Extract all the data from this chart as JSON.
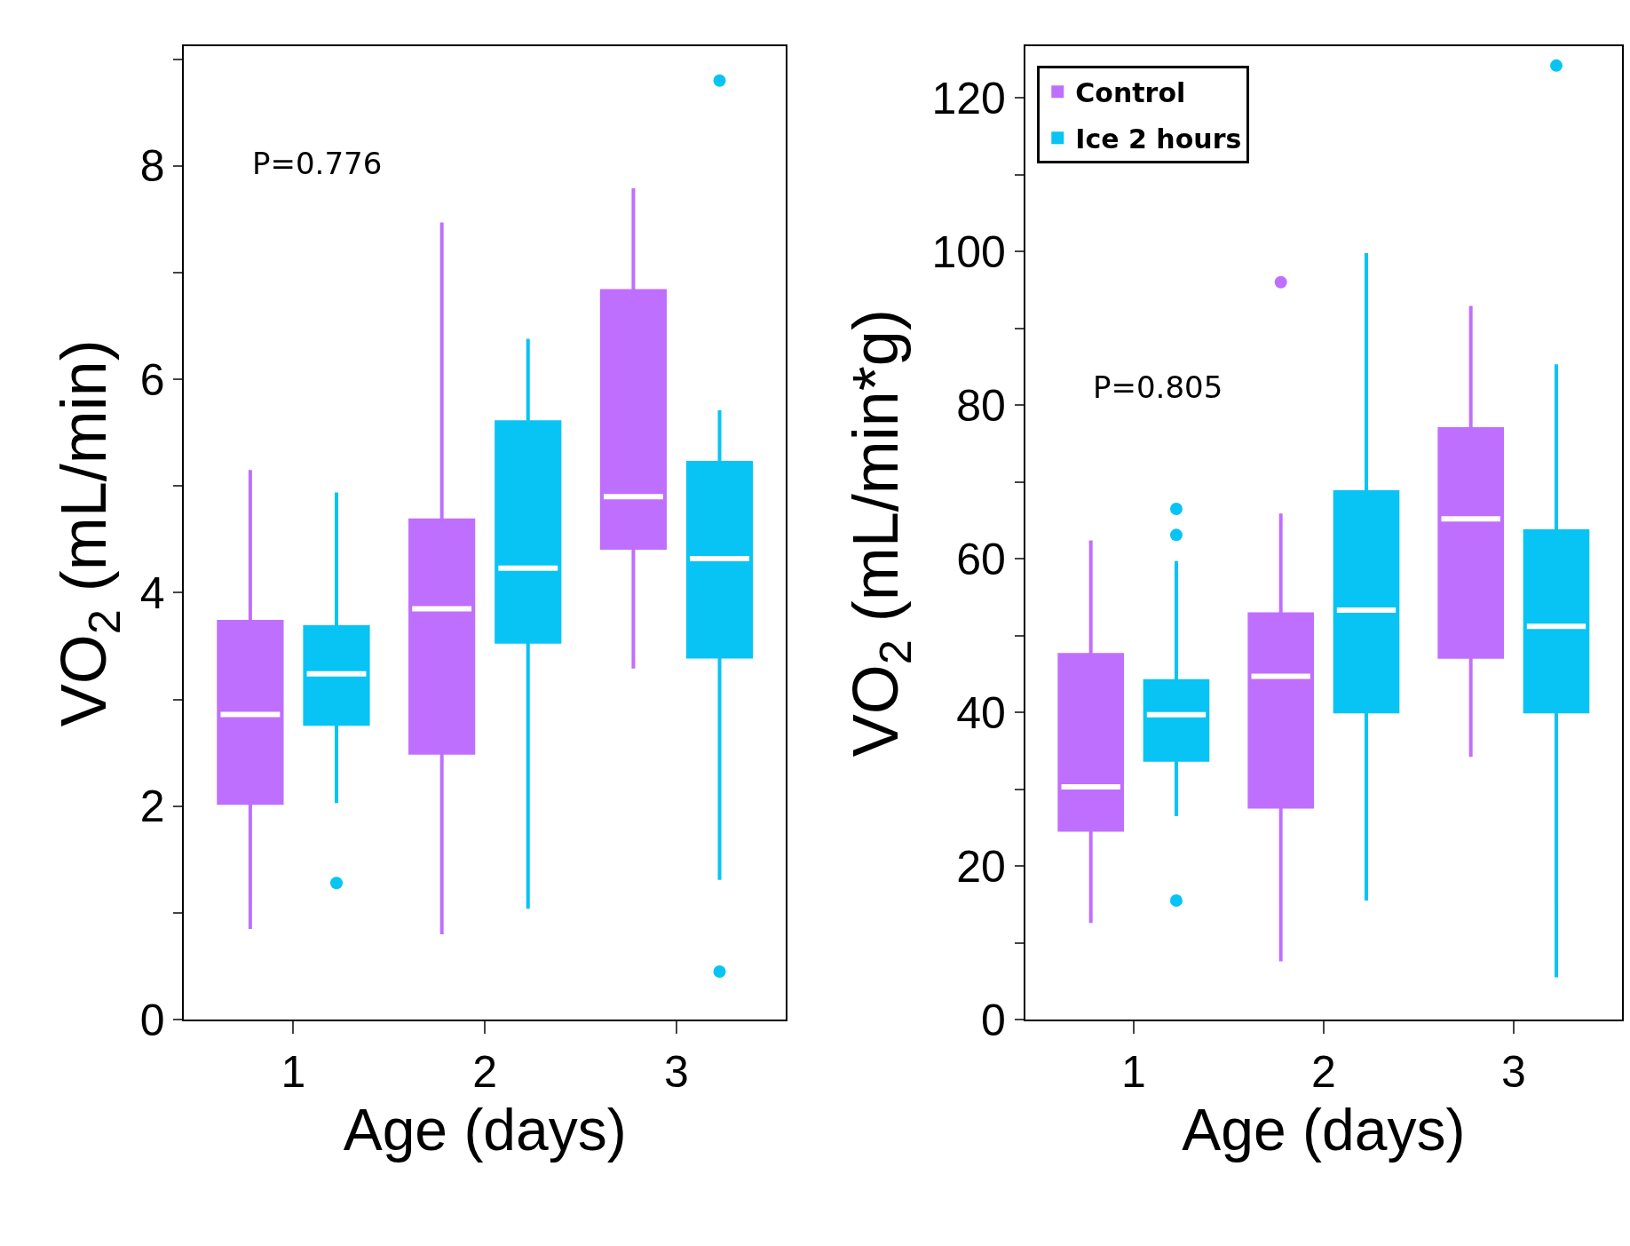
{
  "chart_data": [
    {
      "type": "box",
      "xlabel": "Age (days)",
      "ylabel": "VO$_{2}$ (mL/min)",
      "categories": [
        "1",
        "2",
        "3"
      ],
      "ylim": [
        0,
        9.12
      ],
      "yticks": [
        0,
        {
          "value": 1,
          "label": null
        },
        2,
        {
          "value": 3,
          "label": null
        },
        4,
        {
          "value": 5,
          "label": null
        },
        6,
        {
          "value": 7,
          "label": null
        },
        8,
        {
          "value": 9,
          "label": null
        }
      ],
      "annotations": [
        "P=0.776"
      ],
      "legend": false,
      "grid": false,
      "series": [
        {
          "color": "#bf6ffd",
          "boxes": [
            {
              "low": 0.85,
              "q1": 2.03,
              "median": 2.86,
              "q3": 3.73,
              "high": 5.15
            },
            {
              "low": 0.8,
              "q1": 2.5,
              "median": 3.85,
              "q3": 4.68,
              "high": 7.47
            },
            {
              "low": 3.29,
              "q1": 4.42,
              "median": 4.9,
              "q3": 6.83,
              "high": 7.79
            }
          ]
        },
        {
          "color": "#08c4f4",
          "boxes": [
            {
              "low": 2.03,
              "q1": 2.77,
              "median": 3.24,
              "q3": 3.68,
              "high": 4.94,
              "outliers": [
                1.28
              ]
            },
            {
              "low": 1.04,
              "q1": 3.54,
              "median": 4.23,
              "q3": 5.6,
              "high": 6.38
            },
            {
              "low": 1.31,
              "q1": 3.4,
              "median": 4.32,
              "q3": 5.22,
              "high": 5.71,
              "outliers": [
                8.8,
                0.45
              ]
            }
          ]
        }
      ]
    },
    {
      "type": "box",
      "xlabel": "Age (days)",
      "ylabel": "VO$_{2}$ (mL/min*g)",
      "categories": [
        "1",
        "2",
        "3"
      ],
      "ylim": [
        0,
        126.7
      ],
      "yticks": [
        0,
        {
          "value": 10,
          "label": null
        },
        20,
        {
          "value": 30,
          "label": null
        },
        40,
        {
          "value": 50,
          "label": null
        },
        60,
        {
          "value": 70,
          "label": null
        },
        80,
        {
          "value": 90,
          "label": null
        },
        100,
        {
          "value": 110,
          "label": null
        },
        120
      ],
      "annotations": [
        "P=0.805"
      ],
      "legend": "top left",
      "grid": false,
      "series": [
        {
          "name": "Control",
          "color": "#bf6ffd",
          "boxes": [
            {
              "low": 12.6,
              "q1": 24.7,
              "median": 30.3,
              "q3": 47.5,
              "high": 62.4
            },
            {
              "low": 7.6,
              "q1": 27.7,
              "median": 44.7,
              "q3": 52.8,
              "high": 65.9,
              "outliers": [
                96.0
              ]
            },
            {
              "low": 34.2,
              "q1": 47.2,
              "median": 65.2,
              "q3": 76.9,
              "high": 92.9
            }
          ]
        },
        {
          "name": "Ice 2 hours",
          "color": "#08c4f4",
          "boxes": [
            {
              "low": 26.5,
              "q1": 33.8,
              "median": 39.7,
              "q3": 44.1,
              "high": 59.7,
              "outliers": [
                66.5,
                63.1,
                15.5
              ]
            },
            {
              "low": 15.5,
              "q1": 40.1,
              "median": 53.3,
              "q3": 68.7,
              "high": 99.8
            },
            {
              "low": 5.5,
              "q1": 40.1,
              "median": 51.2,
              "q3": 63.6,
              "high": 85.3,
              "outliers": [
                124.2
              ]
            }
          ]
        }
      ]
    }
  ]
}
